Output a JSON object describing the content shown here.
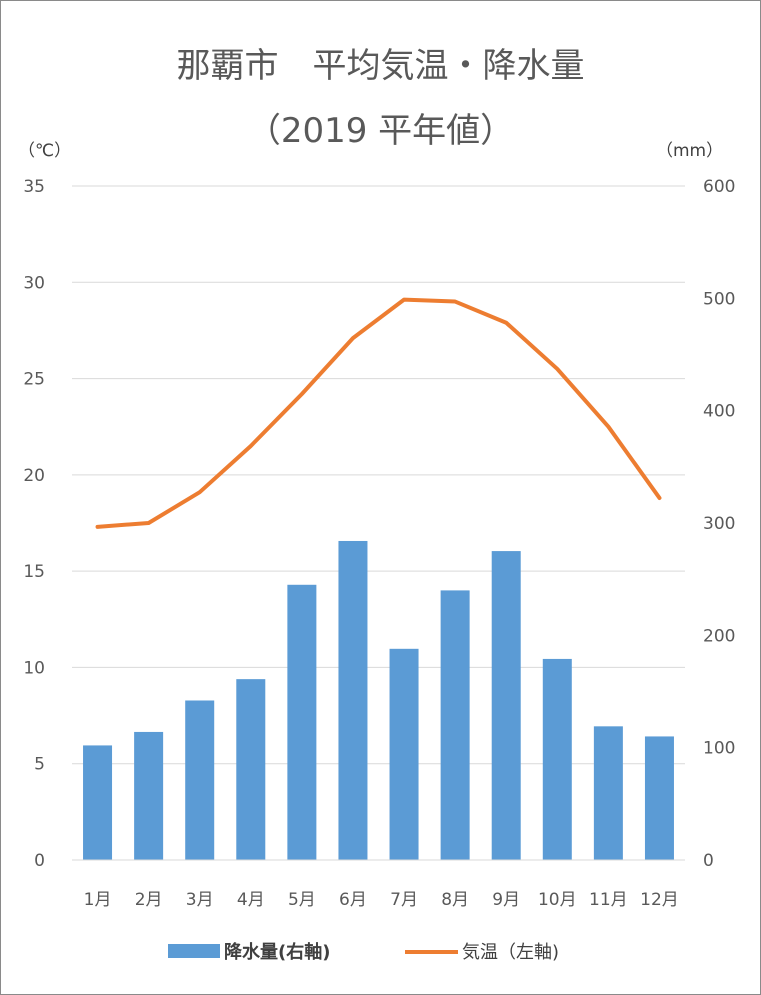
{
  "chart_data": {
    "type": "bar",
    "title": "那覇市　平均気温・降水量",
    "subtitle": "（2019 平年値）",
    "left_unit": "（℃）",
    "right_unit": "（mm）",
    "categories": [
      "1月",
      "2月",
      "3月",
      "4月",
      "5月",
      "6月",
      "7月",
      "8月",
      "9月",
      "10月",
      "11月",
      "12月"
    ],
    "left_axis": {
      "ylim": [
        0,
        35
      ],
      "ticks": [
        "0",
        "5",
        "10",
        "15",
        "20",
        "25",
        "30",
        "35"
      ]
    },
    "right_axis": {
      "ylim": [
        0,
        600
      ],
      "ticks": [
        "0",
        "100",
        "200",
        "300",
        "400",
        "500",
        "600"
      ]
    },
    "grid": true,
    "legend_position": "bottom",
    "series": [
      {
        "name": "降水量(右軸)",
        "type": "bar",
        "axis": "right",
        "color": "#5b9bd5",
        "values": [
          102,
          114,
          142,
          161,
          245,
          284,
          188,
          240,
          275,
          179,
          119,
          110
        ]
      },
      {
        "name": "気温（左軸)",
        "type": "line",
        "axis": "left",
        "color": "#ed7d31",
        "values": [
          17.3,
          17.5,
          19.1,
          21.5,
          24.2,
          27.1,
          29.1,
          29.0,
          27.9,
          25.5,
          22.5,
          18.8
        ]
      }
    ]
  },
  "legend": {
    "precip_label": "降水量(右軸)",
    "temp_label": "気温（左軸)"
  }
}
